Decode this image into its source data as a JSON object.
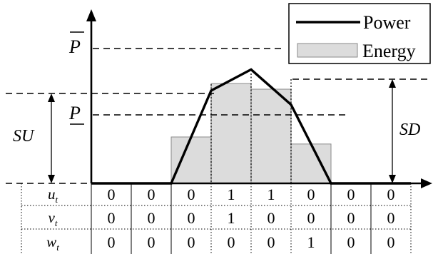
{
  "labels": {
    "p_max": "P",
    "p_min": "P",
    "su": "SU",
    "sd": "SD"
  },
  "legend": {
    "power_label": "Power",
    "energy_label": "Energy"
  },
  "table": {
    "rows": [
      {
        "var": "u",
        "sub": "t",
        "values": [
          "0",
          "0",
          "0",
          "1",
          "1",
          "0",
          "0",
          "0"
        ]
      },
      {
        "var": "v",
        "sub": "t",
        "values": [
          "0",
          "0",
          "0",
          "1",
          "0",
          "0",
          "0",
          "0"
        ]
      },
      {
        "var": "w",
        "sub": "t",
        "values": [
          "0",
          "0",
          "0",
          "0",
          "0",
          "1",
          "0",
          "0"
        ]
      }
    ]
  },
  "series": {
    "power_levels": [
      0,
      0,
      0,
      0.66,
      0.81,
      0.56,
      0,
      0
    ],
    "energy_levels": [
      0,
      0,
      0.33,
      0.71,
      0.67,
      0.28,
      0,
      0
    ]
  },
  "colors": {
    "energy_fill": "#dcdcdc",
    "line": "#000000"
  }
}
